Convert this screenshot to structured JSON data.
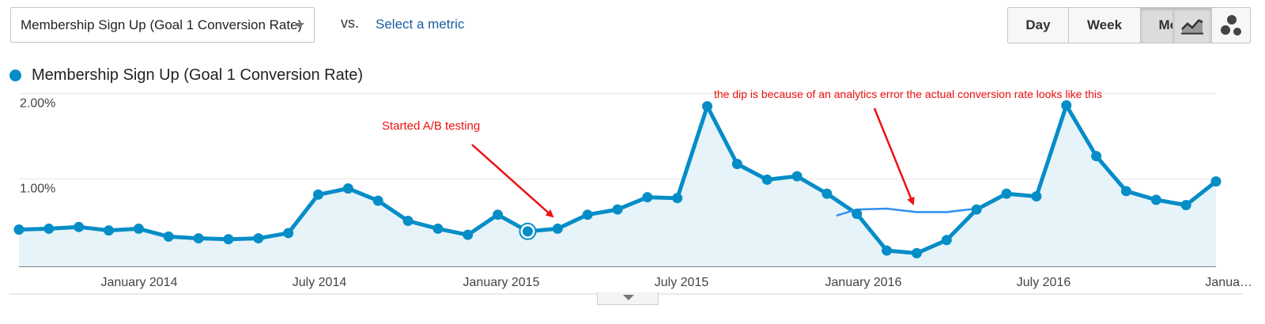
{
  "controls": {
    "metric_select": "Membership Sign Up (Goal 1 Conversion Rate)",
    "vs_label": "vs.",
    "select_metric_link": "Select a metric",
    "granularity": [
      "Day",
      "Week",
      "Month"
    ],
    "granularity_active": "Month",
    "chart_types": [
      "line-chart-icon",
      "motion-chart-icon"
    ]
  },
  "legend": {
    "label": "Membership Sign Up (Goal 1 Conversion Rate)",
    "color": "#058dc7"
  },
  "annotations": {
    "ab_test": "Started A/B testing",
    "dip": "the dip is because of an analytics error the actual conversion rate looks like this"
  },
  "colors": {
    "series": "#058dc7",
    "area": "#e6f3f9",
    "annotation": "#ee1111",
    "corrected_line": "#2f8ff0"
  },
  "chart_data": {
    "type": "line",
    "y_tick_labels": [
      "2.00%",
      "1.00%"
    ],
    "y_ticks": [
      2.0,
      1.0
    ],
    "ylim": [
      0,
      2.0
    ],
    "x_tick_labels": [
      "January 2014",
      "July 2014",
      "January 2015",
      "July 2015",
      "January 2016",
      "July 2016",
      "Janua…"
    ],
    "series": [
      {
        "name": "Membership Sign Up (Goal 1 Conversion Rate)",
        "x": [
          "2013-09",
          "2013-10",
          "2013-11",
          "2013-12",
          "2014-01",
          "2014-02",
          "2014-03",
          "2014-04",
          "2014-05",
          "2014-06",
          "2014-07",
          "2014-08",
          "2014-09",
          "2014-10",
          "2014-11",
          "2014-12",
          "2015-01",
          "2015-02",
          "2015-03",
          "2015-04",
          "2015-05",
          "2015-06",
          "2015-07",
          "2015-08",
          "2015-09",
          "2015-10",
          "2015-11",
          "2015-12",
          "2016-01",
          "2016-02",
          "2016-03",
          "2016-04",
          "2016-05",
          "2016-06",
          "2016-07",
          "2016-08",
          "2016-09",
          "2016-10",
          "2016-11",
          "2016-12",
          "2017-01"
        ],
        "values": [
          0.42,
          0.43,
          0.45,
          0.41,
          0.43,
          0.34,
          0.32,
          0.31,
          0.32,
          0.38,
          0.82,
          0.89,
          0.75,
          0.52,
          0.43,
          0.36,
          0.59,
          0.4,
          0.43,
          0.59,
          0.65,
          0.79,
          0.78,
          1.83,
          1.17,
          0.99,
          1.03,
          0.83,
          0.6,
          0.18,
          0.15,
          0.3,
          0.65,
          0.83,
          0.8,
          1.84,
          1.26,
          0.86,
          0.76,
          0.7,
          0.97
        ],
        "highlighted": "2015-02"
      },
      {
        "name": "",
        "x": [
          "2015-12",
          "2016-01",
          "2016-02",
          "2016-03",
          "2016-04",
          "2016-05"
        ],
        "values": [
          0.58,
          0.65,
          0.66,
          0.62,
          0.62,
          0.66
        ]
      }
    ],
    "grid": true
  }
}
